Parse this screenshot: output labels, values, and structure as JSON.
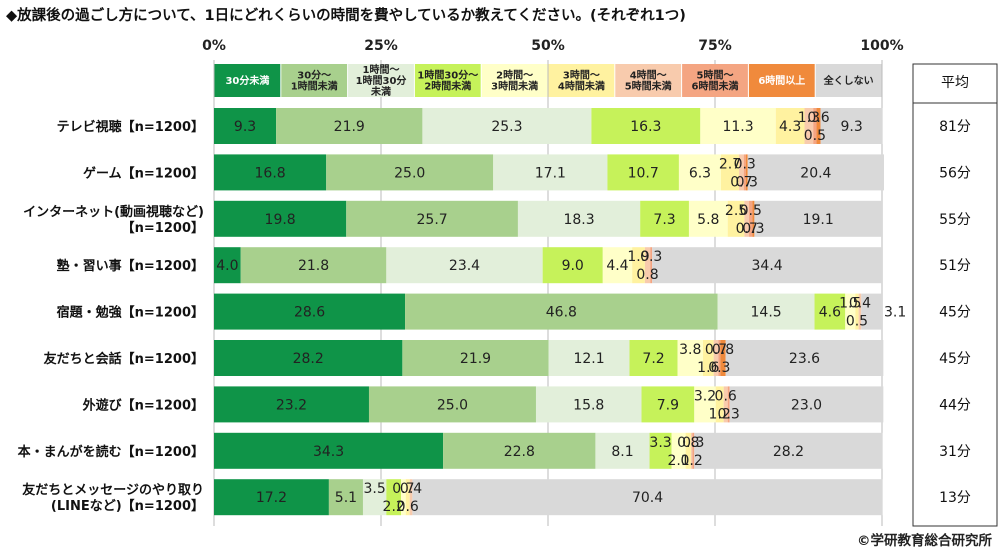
{
  "title": "◆放課後の過ごし方について、1日にどれくらいの時間を費やしているか教えてください。(それぞれ1つ)",
  "copyright": "©学研教育総合研究所",
  "chart_data": {
    "type": "bar",
    "orientation": "horizontal",
    "stacked": true,
    "percent_axis_ticks": [
      "0%",
      "25%",
      "50%",
      "75%",
      "100%"
    ],
    "xlim": [
      0,
      100
    ],
    "grid": true,
    "legend_position": "top",
    "average_header": "平均",
    "categories": [
      "テレビ視聴【n=1200】",
      "ゲーム【n=1200】",
      "インターネット(動画視聴など)\n【n=1200】",
      "塾・習い事【n=1200】",
      "宿題・勉強【n=1200】",
      "友だちと会話【n=1200】",
      "外遊び【n=1200】",
      "本・まんがを読む【n=1200】",
      "友だちとメッセージのやり取り\n(LINEなど)【n=1200】"
    ],
    "averages": [
      "81分",
      "56分",
      "55分",
      "51分",
      "45分",
      "45分",
      "44分",
      "31分",
      "13分"
    ],
    "series": [
      {
        "name": "30分未満",
        "color": "#0f9448",
        "text_color": "#ffffff",
        "values": [
          9.3,
          16.8,
          19.8,
          4.0,
          28.6,
          28.2,
          23.2,
          34.3,
          17.2
        ]
      },
      {
        "name": "30分～\n1時間未満",
        "color": "#a8d08d",
        "text_color": "#222222",
        "values": [
          21.9,
          25.0,
          25.7,
          21.8,
          46.8,
          21.9,
          25.0,
          22.8,
          5.1
        ]
      },
      {
        "name": "1時間～\n1時間30分\n未満",
        "color": "#e2efda",
        "text_color": "#222222",
        "values": [
          25.3,
          17.1,
          18.3,
          23.4,
          14.5,
          12.1,
          15.8,
          8.1,
          3.5
        ]
      },
      {
        "name": "1時間30分～\n2時間未満",
        "color": "#c6f25a",
        "text_color": "#222222",
        "values": [
          16.3,
          10.7,
          7.3,
          9.0,
          4.6,
          7.2,
          7.9,
          3.3,
          2.2
        ]
      },
      {
        "name": "2時間～\n3時間未満",
        "color": "#ffffc8",
        "text_color": "#222222",
        "values": [
          11.3,
          6.3,
          5.8,
          4.4,
          1.5,
          3.8,
          3.2,
          2.1,
          0.7
        ]
      },
      {
        "name": "3時間～\n4時間未満",
        "color": "#fff2a0",
        "text_color": "#222222",
        "values": [
          4.3,
          2.7,
          2.5,
          1.9,
          0.5,
          1.6,
          1.2,
          0.8,
          0.6
        ]
      },
      {
        "name": "4時間～\n5時間未満",
        "color": "#f8cbad",
        "text_color": "#222222",
        "values": [
          1.3,
          0.7,
          0.7,
          0.8,
          0.4,
          0.7,
          0.6,
          0.2,
          0.4
        ]
      },
      {
        "name": "5時間～\n6時間未満",
        "color": "#f4a582",
        "text_color": "#222222",
        "values": [
          0.5,
          0.3,
          0.5,
          0.3,
          0.0,
          0.3,
          0.3,
          0.3,
          0.0
        ]
      },
      {
        "name": "6時間以上",
        "color": "#f08a3c",
        "text_color": "#ffffff",
        "values": [
          0.6,
          0.3,
          0.3,
          0.0,
          0.0,
          0.8,
          0.0,
          0.0,
          0.0
        ]
      },
      {
        "name": "全くしない",
        "color": "#d9d9d9",
        "text_color": "#222222",
        "values": [
          9.3,
          20.4,
          19.1,
          34.4,
          3.1,
          23.6,
          23.0,
          28.2,
          70.4
        ]
      }
    ]
  }
}
